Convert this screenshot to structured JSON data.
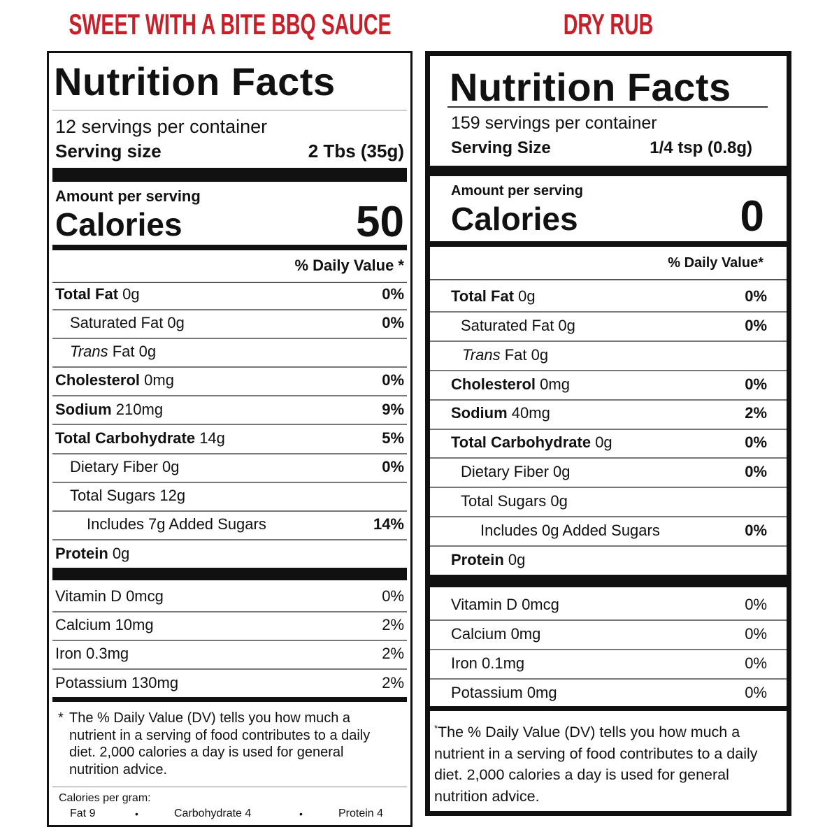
{
  "labels": [
    {
      "product": "SWEET WITH A BITE BBQ SAUCE",
      "heading": "Nutrition Facts",
      "servings": "12 servings per container",
      "serving_size_label": "Serving size",
      "serving_size": "2 Tbs (35g)",
      "amount_per_serving": "Amount per serving",
      "calories_label": "Calories",
      "calories": "50",
      "daily_value_header": "% Daily Value *",
      "rows": [
        {
          "name": "Total Fat",
          "text": "0g",
          "dv": "0%"
        },
        {
          "text": "Saturated Fat 0g",
          "dv": "0%"
        },
        {
          "italic": "Trans",
          "text": "Fat 0g"
        },
        {
          "name": "Cholesterol",
          "text": "0mg",
          "dv": "0%"
        },
        {
          "name": "Sodium",
          "text": "210mg",
          "dv": "9%"
        },
        {
          "name": "Total Carbohydrate",
          "text": "14g",
          "dv": "5%"
        },
        {
          "text": "Dietary Fiber 0g",
          "dv": "0%"
        },
        {
          "text": "Total Sugars 12g"
        },
        {
          "text": "Includes 7g Added Sugars",
          "dv": "14%"
        },
        {
          "name": "Protein",
          "text": "0g"
        }
      ],
      "vitamins": [
        {
          "text": "Vitamin D 0mcg",
          "dv": "0%"
        },
        {
          "text": "Calcium 10mg",
          "dv": "2%"
        },
        {
          "text": "Iron 0.3mg",
          "dv": "2%"
        },
        {
          "text": "Potassium 130mg",
          "dv": "2%"
        }
      ],
      "footnote_mark": "*",
      "footnote": "The % Daily Value (DV) tells you how much a nutrient in a serving of food contributes to a daily diet. 2,000 calories a day is used for general nutrition advice.",
      "calories_per_gram": {
        "title": "Calories per gram:",
        "items": [
          "Fat 9",
          "Carbohydrate 4",
          "Protein 4"
        ],
        "separator": "•"
      }
    },
    {
      "product": "DRY RUB",
      "heading": "Nutrition Facts",
      "servings": "159 servings per container",
      "serving_size_label": "Serving Size",
      "serving_size": "1/4 tsp (0.8g)",
      "amount_per_serving": "Amount per serving",
      "calories_label": "Calories",
      "calories": "0",
      "daily_value_header": "% Daily Value*",
      "rows": [
        {
          "name": "Total Fat",
          "text": "0g",
          "dv": "0%"
        },
        {
          "text": "Saturated Fat 0g",
          "dv": "0%"
        },
        {
          "italic": "Trans",
          "text": "Fat 0g"
        },
        {
          "name": "Cholesterol",
          "text": "0mg",
          "dv": "0%"
        },
        {
          "name": "Sodium",
          "text": "40mg",
          "dv": "2%"
        },
        {
          "name": "Total Carbohydrate",
          "text": "0g",
          "dv": "0%"
        },
        {
          "text": "Dietary Fiber 0g",
          "dv": "0%"
        },
        {
          "text": "Total Sugars 0g"
        },
        {
          "text": "Includes 0g Added Sugars",
          "dv": "0%"
        },
        {
          "name": "Protein",
          "text": "0g"
        }
      ],
      "vitamins": [
        {
          "text": "Vitamin D 0mcg",
          "dv": "0%"
        },
        {
          "text": "Calcium 0mg",
          "dv": "0%"
        },
        {
          "text": "Iron 0.1mg",
          "dv": "0%"
        },
        {
          "text": "Potassium 0mg",
          "dv": "0%"
        }
      ],
      "footnote_mark": "*",
      "footnote": "The % Daily Value (DV) tells you how much a nutrient in a serving of food contributes to a daily diet. 2,000 calories a day is used for general nutrition advice."
    }
  ]
}
